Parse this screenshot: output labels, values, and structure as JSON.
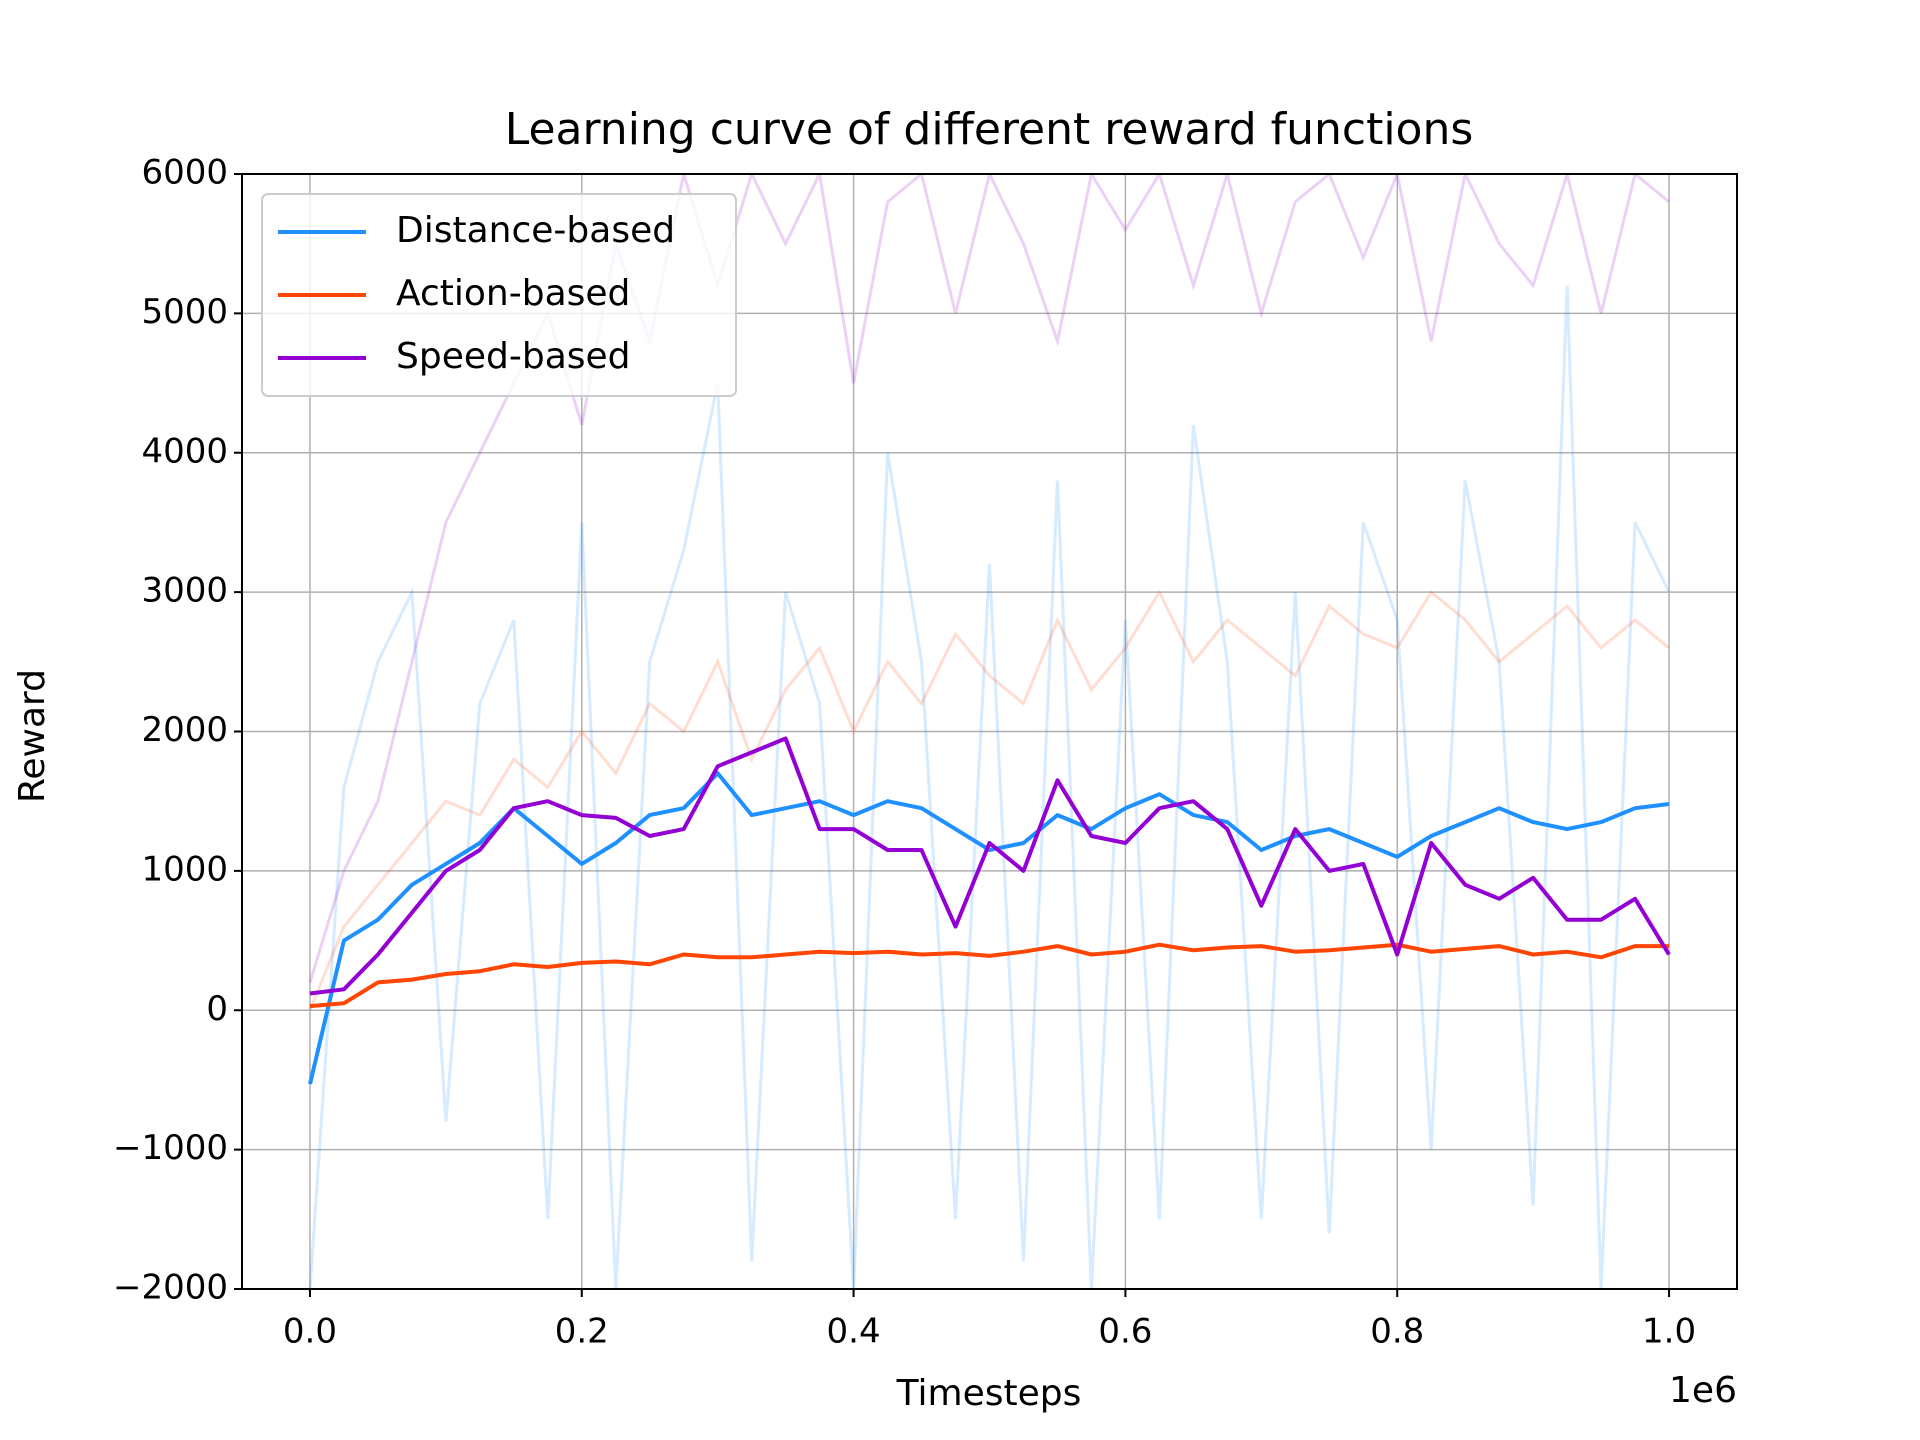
{
  "chart_data": {
    "type": "line",
    "title": "Learning curve of different reward functions",
    "x_label": "Timesteps",
    "y_label": "Reward",
    "x_offset_label": "1e6",
    "x": [
      0,
      0.025,
      0.05,
      0.075,
      0.1,
      0.125,
      0.15,
      0.175,
      0.2,
      0.225,
      0.25,
      0.275,
      0.3,
      0.325,
      0.35,
      0.375,
      0.4,
      0.425,
      0.45,
      0.475,
      0.5,
      0.525,
      0.55,
      0.575,
      0.6,
      0.625,
      0.65,
      0.675,
      0.7,
      0.725,
      0.75,
      0.775,
      0.8,
      0.825,
      0.85,
      0.875,
      0.9,
      0.925,
      0.95,
      0.975,
      1.0
    ],
    "series": [
      {
        "name": "Distance-based",
        "color": "#1e90ff",
        "values": [
          -530,
          500,
          650,
          900,
          1050,
          1200,
          1450,
          1250,
          1050,
          1200,
          1400,
          1450,
          1700,
          1400,
          1450,
          1500,
          1400,
          1500,
          1450,
          1300,
          1150,
          1200,
          1400,
          1300,
          1450,
          1550,
          1400,
          1350,
          1150,
          1250,
          1300,
          1200,
          1100,
          1250,
          1350,
          1450,
          1350,
          1300,
          1350,
          1450,
          1480
        ],
        "raw_values": [
          -2000,
          1600,
          2500,
          3000,
          -800,
          2200,
          2800,
          -1500,
          3500,
          -2000,
          2500,
          3300,
          4500,
          -1800,
          3000,
          2200,
          -2000,
          4000,
          2500,
          -1500,
          3200,
          -1800,
          3800,
          -2000,
          2800,
          -1500,
          4200,
          2500,
          -1500,
          3000,
          -1600,
          3500,
          2800,
          -1000,
          3800,
          2500,
          -1400,
          5200,
          -2000,
          3500,
          3000
        ]
      },
      {
        "name": "Action-based",
        "color": "#ff4500",
        "values": [
          30,
          50,
          200,
          220,
          260,
          280,
          330,
          310,
          340,
          350,
          330,
          400,
          380,
          380,
          400,
          420,
          410,
          420,
          400,
          410,
          390,
          420,
          460,
          400,
          420,
          470,
          430,
          450,
          460,
          420,
          430,
          450,
          470,
          420,
          440,
          460,
          400,
          420,
          380,
          460,
          460
        ],
        "raw_values": [
          0,
          600,
          900,
          1200,
          1500,
          1400,
          1800,
          1600,
          2000,
          1700,
          2200,
          2000,
          2500,
          1800,
          2300,
          2600,
          2000,
          2500,
          2200,
          2700,
          2400,
          2200,
          2800,
          2300,
          2600,
          3000,
          2500,
          2800,
          2600,
          2400,
          2900,
          2700,
          2600,
          3000,
          2800,
          2500,
          2700,
          2900,
          2600,
          2800,
          2600
        ]
      },
      {
        "name": "Speed-based",
        "color": "#9400d3",
        "values": [
          120,
          150,
          400,
          700,
          1000,
          1150,
          1450,
          1500,
          1400,
          1380,
          1250,
          1300,
          1750,
          1850,
          1950,
          1300,
          1300,
          1150,
          1150,
          600,
          1200,
          1000,
          1650,
          1250,
          1200,
          1450,
          1500,
          1300,
          750,
          1300,
          1000,
          1050,
          400,
          1200,
          900,
          800,
          950,
          650,
          650,
          800,
          400
        ],
        "raw_values": [
          200,
          1000,
          1500,
          2500,
          3500,
          4000,
          4500,
          5000,
          4200,
          5500,
          4800,
          6000,
          5200,
          6000,
          5500,
          6000,
          4500,
          5800,
          6000,
          5000,
          6000,
          5500,
          4800,
          6000,
          5600,
          6000,
          5200,
          6000,
          5000,
          5800,
          6000,
          5400,
          6000,
          4800,
          6000,
          5500,
          5200,
          6000,
          5000,
          6000,
          5800
        ]
      }
    ],
    "xlim": [
      -0.05,
      1.05
    ],
    "xticks": [
      {
        "value": 0,
        "label": "0.0"
      },
      {
        "value": 0.2,
        "label": "0.2"
      },
      {
        "value": 0.4,
        "label": "0.4"
      },
      {
        "value": 0.6,
        "label": "0.6"
      },
      {
        "value": 0.8,
        "label": "0.8"
      },
      {
        "value": 1.0,
        "label": "1.0"
      }
    ],
    "ylim": [
      -2000,
      6000
    ],
    "yticks": [
      {
        "value": -2000,
        "label": "−2000"
      },
      {
        "value": -1000,
        "label": "−1000"
      },
      0,
      1000,
      2000,
      3000,
      4000,
      5000,
      6000
    ],
    "grid": true,
    "legend": "upper-left"
  }
}
